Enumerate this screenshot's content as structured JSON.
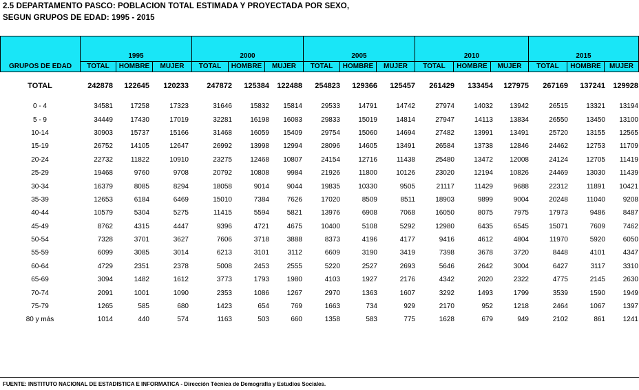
{
  "title": {
    "line1": "2.5  DEPARTAMENTO PASCO: POBLACION TOTAL ESTIMADA Y PROYECTADA POR SEXO,",
    "line2": "SEGUN GRUPOS DE EDAD: 1995 - 2015"
  },
  "header": {
    "group_label": "GRUPOS DE EDAD",
    "years": [
      "1995",
      "2000",
      "2005",
      "2010",
      "2015"
    ],
    "sub": [
      "TOTAL",
      "HOMBRE",
      "MUJER"
    ]
  },
  "total_row": {
    "label": "TOTAL",
    "values": [
      "242878",
      "122645",
      "120233",
      "247872",
      "125384",
      "122488",
      "254823",
      "129366",
      "125457",
      "261429",
      "133454",
      "127975",
      "267169",
      "137241",
      "129928"
    ]
  },
  "rows": [
    {
      "label": "0 - 4",
      "values": [
        "34581",
        "17258",
        "17323",
        "31646",
        "15832",
        "15814",
        "29533",
        "14791",
        "14742",
        "27974",
        "14032",
        "13942",
        "26515",
        "13321",
        "13194"
      ]
    },
    {
      "label": "5 - 9",
      "values": [
        "34449",
        "17430",
        "17019",
        "32281",
        "16198",
        "16083",
        "29833",
        "15019",
        "14814",
        "27947",
        "14113",
        "13834",
        "26550",
        "13450",
        "13100"
      ]
    },
    {
      "label": "10-14",
      "values": [
        "30903",
        "15737",
        "15166",
        "31468",
        "16059",
        "15409",
        "29754",
        "15060",
        "14694",
        "27482",
        "13991",
        "13491",
        "25720",
        "13155",
        "12565"
      ]
    },
    {
      "label": "15-19",
      "values": [
        "26752",
        "14105",
        "12647",
        "26992",
        "13998",
        "12994",
        "28096",
        "14605",
        "13491",
        "26584",
        "13738",
        "12846",
        "24462",
        "12753",
        "11709"
      ]
    },
    {
      "label": "20-24",
      "values": [
        "22732",
        "11822",
        "10910",
        "23275",
        "12468",
        "10807",
        "24154",
        "12716",
        "11438",
        "25480",
        "13472",
        "12008",
        "24124",
        "12705",
        "11419"
      ]
    },
    {
      "label": "25-29",
      "values": [
        "19468",
        "9760",
        "9708",
        "20792",
        "10808",
        "9984",
        "21926",
        "11800",
        "10126",
        "23020",
        "12194",
        "10826",
        "24469",
        "13030",
        "11439"
      ]
    },
    {
      "label": "30-34",
      "values": [
        "16379",
        "8085",
        "8294",
        "18058",
        "9014",
        "9044",
        "19835",
        "10330",
        "9505",
        "21117",
        "11429",
        "9688",
        "22312",
        "11891",
        "10421"
      ]
    },
    {
      "label": "35-39",
      "values": [
        "12653",
        "6184",
        "6469",
        "15010",
        "7384",
        "7626",
        "17020",
        "8509",
        "8511",
        "18903",
        "9899",
        "9004",
        "20248",
        "11040",
        "9208"
      ]
    },
    {
      "label": "40-44",
      "values": [
        "10579",
        "5304",
        "5275",
        "11415",
        "5594",
        "5821",
        "13976",
        "6908",
        "7068",
        "16050",
        "8075",
        "7975",
        "17973",
        "9486",
        "8487"
      ]
    },
    {
      "label": "45-49",
      "values": [
        "8762",
        "4315",
        "4447",
        "9396",
        "4721",
        "4675",
        "10400",
        "5108",
        "5292",
        "12980",
        "6435",
        "6545",
        "15071",
        "7609",
        "7462"
      ]
    },
    {
      "label": "50-54",
      "values": [
        "7328",
        "3701",
        "3627",
        "7606",
        "3718",
        "3888",
        "8373",
        "4196",
        "4177",
        "9416",
        "4612",
        "4804",
        "11970",
        "5920",
        "6050"
      ]
    },
    {
      "label": "55-59",
      "values": [
        "6099",
        "3085",
        "3014",
        "6213",
        "3101",
        "3112",
        "6609",
        "3190",
        "3419",
        "7398",
        "3678",
        "3720",
        "8448",
        "4101",
        "4347"
      ]
    },
    {
      "label": "60-64",
      "values": [
        "4729",
        "2351",
        "2378",
        "5008",
        "2453",
        "2555",
        "5220",
        "2527",
        "2693",
        "5646",
        "2642",
        "3004",
        "6427",
        "3117",
        "3310"
      ]
    },
    {
      "label": "65-69",
      "values": [
        "3094",
        "1482",
        "1612",
        "3773",
        "1793",
        "1980",
        "4103",
        "1927",
        "2176",
        "4342",
        "2020",
        "2322",
        "4775",
        "2145",
        "2630"
      ]
    },
    {
      "label": "70-74",
      "values": [
        "2091",
        "1001",
        "1090",
        "2353",
        "1086",
        "1267",
        "2970",
        "1363",
        "1607",
        "3292",
        "1493",
        "1799",
        "3539",
        "1590",
        "1949"
      ]
    },
    {
      "label": "75-79",
      "values": [
        "1265",
        "585",
        "680",
        "1423",
        "654",
        "769",
        "1663",
        "734",
        "929",
        "2170",
        "952",
        "1218",
        "2464",
        "1067",
        "1397"
      ]
    },
    {
      "label": "80 y más",
      "values": [
        "1014",
        "440",
        "574",
        "1163",
        "503",
        "660",
        "1358",
        "583",
        "775",
        "1628",
        "679",
        "949",
        "2102",
        "861",
        "1241"
      ]
    }
  ],
  "footer": "FUENTE: INSTITUTO NACIONAL DE ESTADISTICA E INFORMATICA - Dirección Técnica de Demografía y Estudios Sociales."
}
